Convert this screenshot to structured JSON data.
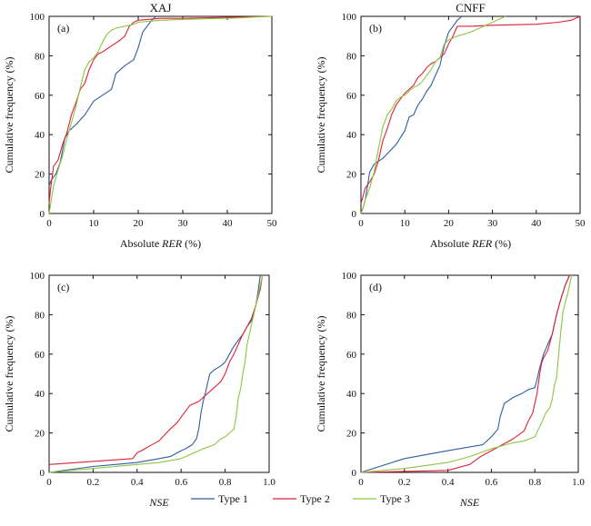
{
  "legend": [
    {
      "name": "Type 1",
      "color": "#2e5e9e"
    },
    {
      "name": "Type 2",
      "color": "#e0203a"
    },
    {
      "name": "Type 3",
      "color": "#8cc63e"
    }
  ],
  "chart_data": [
    {
      "type": "line",
      "panel_tag": "(a)",
      "title": "XAJ",
      "xlabel_pre": "Absolute ",
      "xlabel_ital": "RER",
      "xlabel_post": " (%)",
      "ylabel": "Cumulative frequency (%)",
      "xlim": [
        0,
        50
      ],
      "ylim": [
        0,
        100
      ],
      "xticks": [
        "0",
        "10",
        "20",
        "30",
        "40",
        "50"
      ],
      "yticks": [
        "0",
        "20",
        "40",
        "60",
        "80",
        "100"
      ],
      "grid": false,
      "series": [
        {
          "name": "Type 1",
          "x": [
            0,
            0.5,
            1.5,
            2.5,
            3.5,
            4.5,
            6,
            8,
            10,
            12,
            14,
            15,
            17,
            19,
            20,
            21,
            22,
            23,
            24
          ],
          "y": [
            14,
            17,
            20,
            26,
            38,
            42,
            45,
            50,
            57,
            60,
            63,
            71,
            75,
            78,
            84,
            92,
            95,
            98,
            100
          ]
        },
        {
          "name": "Type 2",
          "x": [
            0,
            0.3,
            1,
            2,
            3,
            4,
            5,
            6,
            7,
            8,
            9,
            10,
            11,
            12,
            14,
            16,
            17,
            18,
            19,
            20,
            25,
            30,
            40,
            50
          ],
          "y": [
            5,
            12,
            24,
            27,
            35,
            41,
            50,
            56,
            63,
            66,
            73,
            78,
            81,
            82,
            85,
            88,
            90,
            95,
            97,
            98,
            99,
            99,
            99.5,
            100
          ]
        },
        {
          "name": "Type 3",
          "x": [
            0,
            1,
            2,
            3,
            4,
            5,
            6,
            7,
            8,
            9,
            10,
            11,
            12,
            13,
            14,
            15,
            17,
            19,
            20,
            25,
            30,
            40,
            50
          ],
          "y": [
            0,
            14,
            22,
            29,
            38,
            46,
            54,
            64,
            73,
            77,
            79,
            82,
            87,
            91,
            93,
            94,
            95,
            96,
            97,
            98,
            98.5,
            99,
            100
          ]
        }
      ]
    },
    {
      "type": "line",
      "panel_tag": "(b)",
      "title": "CNFF",
      "xlabel_pre": "Absolute ",
      "xlabel_ital": "RER",
      "xlabel_post": " (%)",
      "ylabel": "Cumulative frequency (%)",
      "xlim": [
        0,
        50
      ],
      "ylim": [
        0,
        100
      ],
      "xticks": [
        "0",
        "10",
        "20",
        "30",
        "40",
        "50"
      ],
      "yticks": [
        "0",
        "20",
        "40",
        "60",
        "80",
        "100"
      ],
      "grid": false,
      "series": [
        {
          "name": "Type 1",
          "x": [
            0,
            0.5,
            1,
            2,
            3,
            5,
            8,
            10,
            11,
            12,
            13,
            14,
            15,
            16,
            17,
            18,
            19,
            20,
            21,
            22,
            23
          ],
          "y": [
            0,
            3,
            7,
            21,
            25,
            28,
            35,
            42,
            49,
            50,
            55,
            58,
            62,
            65,
            70,
            75,
            85,
            92,
            95,
            98,
            100
          ]
        },
        {
          "name": "Type 2",
          "x": [
            0,
            0.5,
            1,
            2,
            3,
            4,
            5,
            6,
            7,
            8,
            9,
            10,
            11,
            12,
            13,
            14,
            15,
            16,
            17,
            18,
            19,
            20,
            21,
            22,
            25,
            30,
            40,
            45,
            48,
            50
          ],
          "y": [
            5,
            9,
            13,
            16,
            20,
            27,
            37,
            43,
            50,
            55,
            58,
            61,
            63,
            65,
            69,
            71,
            74,
            76,
            77,
            79,
            81,
            86,
            90,
            95,
            95,
            95.5,
            96,
            97,
            98,
            100
          ]
        },
        {
          "name": "Type 3",
          "x": [
            0,
            0.5,
            1,
            2,
            3,
            4,
            5,
            6,
            7,
            8,
            9,
            10,
            11,
            12,
            13,
            14,
            15,
            16,
            17,
            18,
            19,
            20,
            21,
            22,
            25,
            28,
            30,
            33
          ],
          "y": [
            0,
            3,
            7,
            13,
            21,
            33,
            44,
            50,
            53,
            57,
            59,
            60,
            62,
            64,
            65,
            67,
            70,
            73,
            77,
            79,
            86,
            88,
            89,
            90,
            92,
            95,
            97,
            100
          ]
        }
      ]
    },
    {
      "type": "line",
      "panel_tag": "(c)",
      "title": "",
      "xlabel_pre": "",
      "xlabel_ital": "NSE",
      "xlabel_post": "",
      "ylabel": "Cumulative frequency (%)",
      "xlim": [
        0,
        1
      ],
      "ylim": [
        0,
        100
      ],
      "xticks": [
        "0",
        "0.2",
        "0.4",
        "0.6",
        "0.8",
        "1.0"
      ],
      "yticks": [
        "0",
        "20",
        "40",
        "60",
        "80",
        "100"
      ],
      "grid": false,
      "series": [
        {
          "name": "Type 1",
          "x": [
            0,
            0.2,
            0.4,
            0.5,
            0.55,
            0.6,
            0.62,
            0.65,
            0.67,
            0.68,
            0.69,
            0.7,
            0.71,
            0.72,
            0.73,
            0.75,
            0.78,
            0.8,
            0.82,
            0.84,
            0.86,
            0.88,
            0.9,
            0.92,
            0.94,
            0.95,
            0.96
          ],
          "y": [
            0,
            3,
            5,
            7,
            8,
            11,
            12,
            14,
            17,
            22,
            30,
            36,
            40,
            45,
            50,
            52,
            54,
            56,
            60,
            64,
            67,
            70,
            74,
            77,
            85,
            92,
            100
          ]
        },
        {
          "name": "Type 2",
          "x": [
            0,
            0.38,
            0.4,
            0.42,
            0.45,
            0.5,
            0.55,
            0.58,
            0.6,
            0.62,
            0.64,
            0.66,
            0.68,
            0.7,
            0.72,
            0.74,
            0.76,
            0.78,
            0.8,
            0.82,
            0.84,
            0.86,
            0.88,
            0.9,
            0.92,
            0.94,
            0.96,
            0.97
          ],
          "y": [
            4,
            7,
            10,
            11,
            13,
            16,
            22,
            25,
            28,
            31,
            34,
            35,
            36,
            38,
            40,
            42,
            44,
            46,
            50,
            56,
            60,
            65,
            70,
            74,
            78,
            85,
            93,
            100
          ]
        },
        {
          "name": "Type 3",
          "x": [
            0,
            0.2,
            0.4,
            0.5,
            0.6,
            0.7,
            0.75,
            0.78,
            0.8,
            0.82,
            0.84,
            0.85,
            0.86,
            0.87,
            0.88,
            0.89,
            0.9,
            0.91,
            0.92,
            0.93,
            0.94,
            0.95,
            0.96,
            0.97
          ],
          "y": [
            0,
            2,
            4,
            5,
            7,
            12,
            14,
            17,
            18,
            20,
            22,
            28,
            38,
            42,
            50,
            56,
            65,
            70,
            75,
            80,
            85,
            90,
            95,
            100
          ]
        }
      ]
    },
    {
      "type": "line",
      "panel_tag": "(d)",
      "title": "",
      "xlabel_pre": "",
      "xlabel_ital": "NSE",
      "xlabel_post": "",
      "ylabel": "Cumulative frequency (%)",
      "xlim": [
        0,
        1
      ],
      "ylim": [
        0,
        100
      ],
      "xticks": [
        "0",
        "0.2",
        "0.4",
        "0.6",
        "0.8",
        "1.0"
      ],
      "yticks": [
        "0",
        "20",
        "40",
        "60",
        "80",
        "100"
      ],
      "grid": false,
      "series": [
        {
          "name": "Type 1",
          "x": [
            0,
            0.2,
            0.4,
            0.56,
            0.6,
            0.63,
            0.64,
            0.66,
            0.7,
            0.74,
            0.77,
            0.8,
            0.81,
            0.82,
            0.83,
            0.84,
            0.86,
            0.88,
            0.9,
            0.92,
            0.94,
            0.96
          ],
          "y": [
            0,
            7,
            11,
            14,
            18,
            22,
            28,
            35,
            38,
            40,
            42,
            43,
            47,
            52,
            56,
            60,
            65,
            70,
            80,
            88,
            95,
            100
          ]
        },
        {
          "name": "Type 2",
          "x": [
            0,
            0.2,
            0.4,
            0.5,
            0.55,
            0.6,
            0.65,
            0.7,
            0.75,
            0.77,
            0.79,
            0.8,
            0.81,
            0.82,
            0.83,
            0.84,
            0.85,
            0.86,
            0.88,
            0.9,
            0.92,
            0.94,
            0.96
          ],
          "y": [
            0,
            0.5,
            1,
            4,
            8,
            11,
            14,
            17,
            21,
            26,
            30,
            35,
            40,
            48,
            55,
            58,
            60,
            62,
            70,
            80,
            88,
            95,
            100
          ]
        },
        {
          "name": "Type 3",
          "x": [
            0,
            0.2,
            0.4,
            0.5,
            0.6,
            0.7,
            0.75,
            0.8,
            0.83,
            0.85,
            0.87,
            0.88,
            0.89,
            0.9,
            0.91,
            0.92,
            0.93,
            0.95,
            0.96,
            0.97
          ],
          "y": [
            0,
            2,
            5,
            8,
            12,
            15,
            16,
            18,
            25,
            30,
            33,
            37,
            44,
            48,
            60,
            72,
            82,
            90,
            95,
            100
          ]
        }
      ]
    }
  ]
}
